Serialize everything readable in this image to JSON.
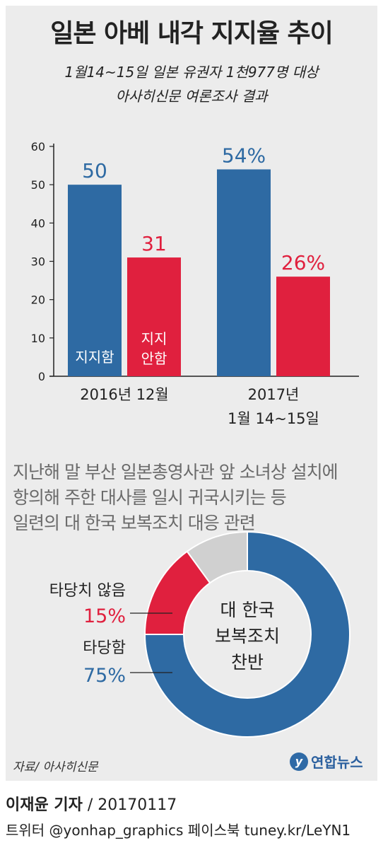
{
  "title": "일본 아베 내각 지지율 추이",
  "subtitle_line1": "1월14~15일 일본 유권자 1천977명 대상",
  "subtitle_line2": "아사히신문 여론조사 결과",
  "chart_data": [
    {
      "type": "bar",
      "categories": [
        [
          "2016년 12월"
        ],
        [
          "2017년",
          "1월 14~15일"
        ]
      ],
      "series": [
        {
          "name": "지지함",
          "values": [
            50,
            54
          ],
          "labels": [
            "50",
            "54%"
          ],
          "color": "#2e6aa3"
        },
        {
          "name": "지지 안함",
          "values": [
            31,
            26
          ],
          "labels": [
            "31",
            "26%"
          ],
          "color": "#e0203e"
        }
      ],
      "yticks": [
        0,
        10,
        20,
        30,
        40,
        50,
        60
      ],
      "ylim": [
        0,
        60
      ],
      "grid": false
    },
    {
      "type": "pie",
      "center_label": [
        "대 한국",
        "보복조치",
        "찬반"
      ],
      "slices": [
        {
          "name": "타당함",
          "value": 75,
          "label": "75%",
          "color": "#2e6aa3"
        },
        {
          "name": "타당치 않음",
          "value": 15,
          "label": "15%",
          "color": "#e0203e"
        },
        {
          "name": "",
          "value": 10,
          "label": "",
          "color": "#d0d0d0"
        }
      ]
    }
  ],
  "question": [
    "지난해 말 부산 일본총영사관 앞 소녀상 설치에",
    "항의해 주한 대사를 일시 귀국시키는 등",
    "일련의 대 한국 보복조치 대응 관련"
  ],
  "source": "자료/ 아사히신문",
  "logo_text": "연합뉴스",
  "reporter": "이재윤 기자",
  "date": " / 20170117",
  "social": "트위터 @yonhap_graphics  페이스북 tuney.kr/LeYN1"
}
